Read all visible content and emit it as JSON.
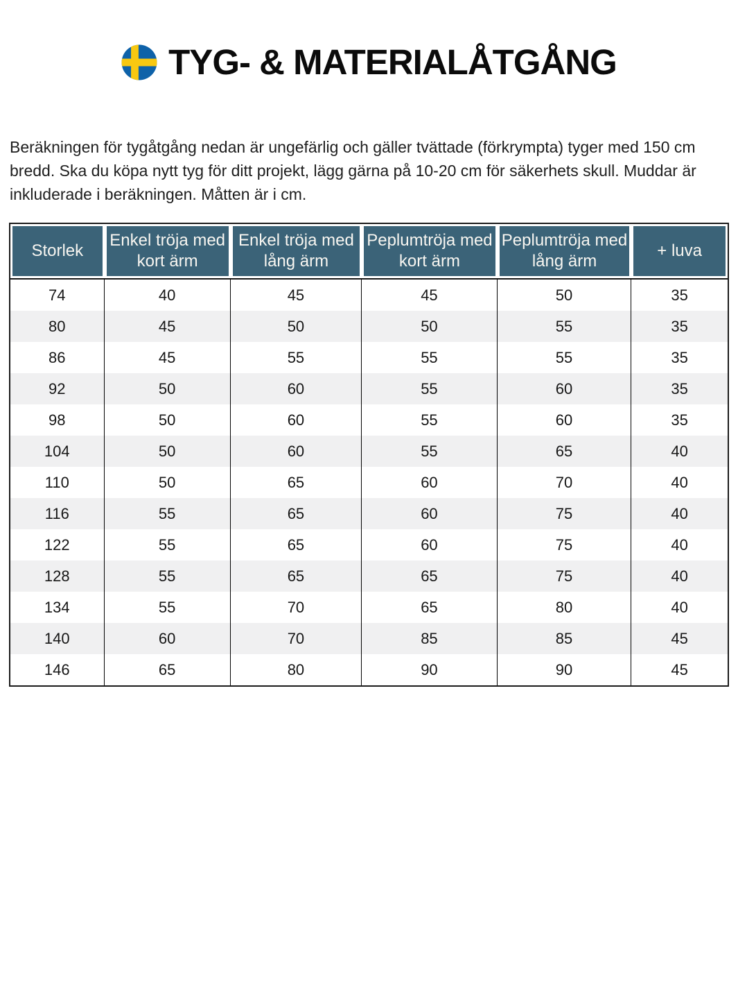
{
  "page": {
    "title": "TYG- & MATERIALÅTGÅNG"
  },
  "flag_icon": {
    "label": "swedish-flag",
    "blue": "#0e62a9",
    "yellow": "#f8c811"
  },
  "intro": "Beräkningen för tygåtgång nedan är ungefärlig och gäller tvättade (förkrympta) tyger med 150 cm bredd. Ska du köpa nytt tyg för ditt projekt, lägg gärna på 10-20 cm för säkerhets skull. Muddar är inkluderade i beräkningen. Måtten är i cm.",
  "colors": {
    "header_bg": "#3b6378",
    "row_alt": "#f0f0f1"
  },
  "chart_data": {
    "type": "table",
    "columns": [
      "Storlek",
      "Enkel tröja med kort ärm",
      "Enkel tröja med lång ärm",
      "Peplumtröja med kort ärm",
      "Peplumtröja med lång ärm",
      "+ luva"
    ],
    "rows": [
      [
        "74",
        "40",
        "45",
        "45",
        "50",
        "35"
      ],
      [
        "80",
        "45",
        "50",
        "50",
        "55",
        "35"
      ],
      [
        "86",
        "45",
        "55",
        "55",
        "55",
        "35"
      ],
      [
        "92",
        "50",
        "60",
        "55",
        "60",
        "35"
      ],
      [
        "98",
        "50",
        "60",
        "55",
        "60",
        "35"
      ],
      [
        "104",
        "50",
        "60",
        "55",
        "65",
        "40"
      ],
      [
        "110",
        "50",
        "65",
        "60",
        "70",
        "40"
      ],
      [
        "116",
        "55",
        "65",
        "60",
        "75",
        "40"
      ],
      [
        "122",
        "55",
        "65",
        "60",
        "75",
        "40"
      ],
      [
        "128",
        "55",
        "65",
        "65",
        "75",
        "40"
      ],
      [
        "134",
        "55",
        "70",
        "65",
        "80",
        "40"
      ],
      [
        "140",
        "60",
        "70",
        "85",
        "85",
        "45"
      ],
      [
        "146",
        "65",
        "80",
        "90",
        "90",
        "45"
      ]
    ]
  }
}
